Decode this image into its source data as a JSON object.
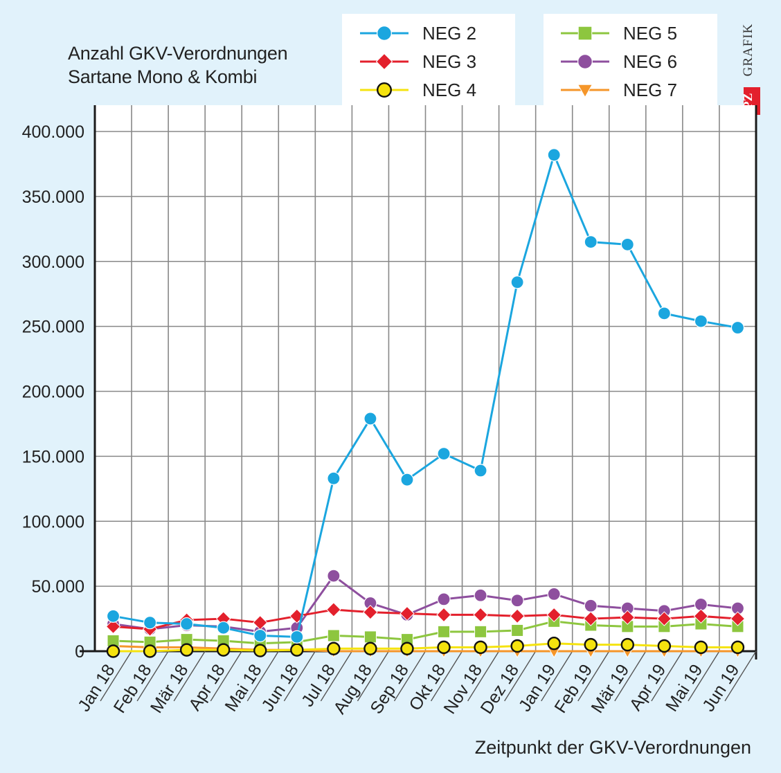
{
  "chart_data": {
    "type": "line",
    "title": "Anzahl GKV-Verordnungen",
    "subtitle": "Sartane Mono & Kombi",
    "xlabel": "Zeitpunkt der GKV-Verordnungen",
    "ylabel": "",
    "ylim": [
      0,
      400000
    ],
    "yticks": [
      0,
      50000,
      100000,
      150000,
      200000,
      250000,
      300000,
      350000,
      400000
    ],
    "ytick_labels": [
      "0",
      "50.000",
      "100.000",
      "150.000",
      "200.000",
      "250.000",
      "300.000",
      "350.000",
      "400.000"
    ],
    "grid": true,
    "legend_position": "top",
    "categories": [
      "Jan 18",
      "Feb 18",
      "Mär 18",
      "Apr 18",
      "Mai 18",
      "Jun 18",
      "Jul 18",
      "Aug 18",
      "Sep 18",
      "Okt 18",
      "Nov 18",
      "Dez 18",
      "Jan 19",
      "Feb 19",
      "Mär 19",
      "Apr 19",
      "Mai 19",
      "Jun 19"
    ],
    "series": [
      {
        "name": "NEG 2",
        "color": "#1ba6df",
        "marker": "circle",
        "values": [
          27000,
          22000,
          21000,
          18000,
          12000,
          11000,
          133000,
          179000,
          132000,
          152000,
          139000,
          284000,
          382000,
          315000,
          313000,
          260000,
          254000,
          249000
        ]
      },
      {
        "name": "NEG 3",
        "color": "#e3202c",
        "marker": "diamond",
        "values": [
          19000,
          17000,
          24000,
          25000,
          22000,
          27000,
          32000,
          30000,
          29000,
          28000,
          28000,
          27000,
          28000,
          25000,
          26000,
          25000,
          27000,
          25000
        ]
      },
      {
        "name": "NEG 4",
        "color": "#f5e30f",
        "marker": "circle-outline",
        "values": [
          0,
          0,
          1000,
          1000,
          500,
          1000,
          2000,
          2000,
          2000,
          3000,
          3000,
          4000,
          6000,
          5000,
          5000,
          4000,
          3000,
          3000
        ]
      },
      {
        "name": "NEG 5",
        "color": "#8dc63f",
        "marker": "square",
        "values": [
          8000,
          7000,
          9000,
          8000,
          6000,
          7000,
          12000,
          11000,
          9000,
          15000,
          15000,
          16000,
          23000,
          20000,
          19000,
          19000,
          21000,
          19000
        ]
      },
      {
        "name": "NEG 6",
        "color": "#8e4f9e",
        "marker": "circle",
        "values": [
          21000,
          17000,
          20000,
          19000,
          15000,
          18000,
          58000,
          37000,
          28000,
          40000,
          43000,
          39000,
          44000,
          35000,
          33000,
          31000,
          36000,
          33000
        ]
      },
      {
        "name": "NEG 7",
        "color": "#f5962a",
        "marker": "triangle-down",
        "values": [
          4000,
          3000,
          3000,
          2000,
          1000,
          1000,
          0,
          0,
          0,
          0,
          0,
          0,
          0,
          0,
          0,
          0,
          0,
          0
        ]
      }
    ]
  },
  "branding": {
    "logo_text": "PZ",
    "logo_word": "GRAFIK",
    "logo_color": "#e3202c"
  }
}
